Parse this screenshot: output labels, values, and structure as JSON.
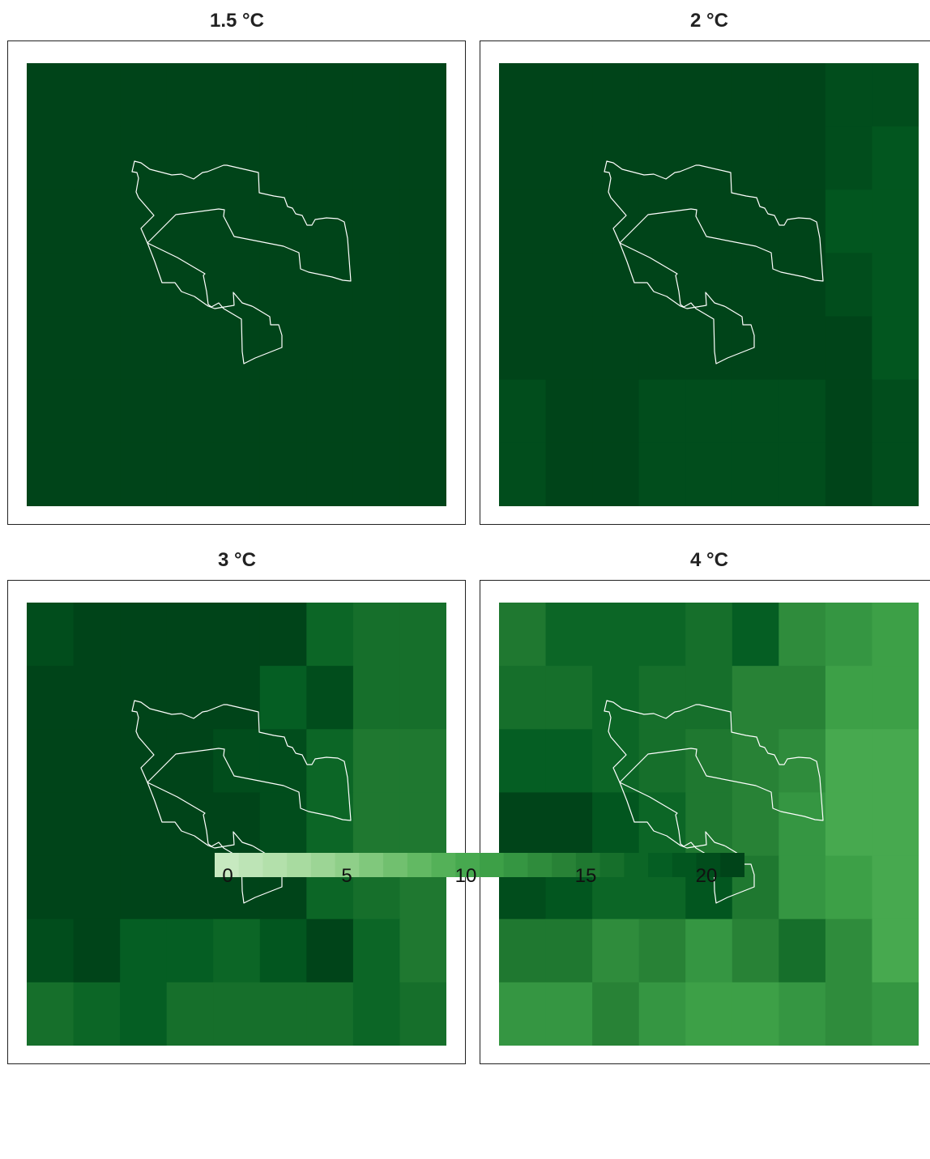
{
  "panels": [
    {
      "title": "1.5 °C",
      "values": [
        [
          21,
          21,
          21,
          21,
          21,
          21,
          21,
          21,
          21
        ],
        [
          21,
          21,
          21,
          21,
          21,
          21,
          21,
          21,
          21
        ],
        [
          21,
          21,
          21,
          21,
          21,
          21,
          21,
          21,
          21
        ],
        [
          21,
          21,
          21,
          21,
          21,
          21,
          21,
          21,
          21
        ],
        [
          21,
          21,
          21,
          21,
          21,
          21,
          21,
          21,
          21
        ],
        [
          21,
          21,
          21,
          21,
          21,
          21,
          21,
          21,
          21
        ],
        [
          21,
          21,
          21,
          21,
          21,
          21,
          21,
          21,
          21
        ]
      ]
    },
    {
      "title": "2 °C",
      "values": [
        [
          21,
          21,
          21,
          21,
          21,
          21,
          21,
          20,
          20
        ],
        [
          21,
          21,
          21,
          21,
          21,
          21,
          21,
          20,
          19
        ],
        [
          21,
          21,
          21,
          21,
          21,
          21,
          21,
          19,
          19
        ],
        [
          21,
          21,
          21,
          21,
          21,
          21,
          21,
          20,
          19
        ],
        [
          21,
          21,
          21,
          21,
          21,
          21,
          21,
          21,
          19
        ],
        [
          20,
          21,
          21,
          20,
          20,
          20,
          20,
          21,
          20
        ],
        [
          20,
          21,
          21,
          20,
          20,
          20,
          20,
          21,
          20
        ]
      ]
    },
    {
      "title": "3 °C",
      "values": [
        [
          20,
          22,
          22,
          22,
          22,
          22,
          17,
          16,
          16
        ],
        [
          21,
          22,
          22,
          21,
          21,
          18,
          20,
          16,
          16
        ],
        [
          22,
          22,
          22,
          21,
          20,
          20,
          17,
          15,
          15
        ],
        [
          22,
          22,
          22,
          22,
          22,
          20,
          17,
          15,
          15
        ],
        [
          22,
          22,
          22,
          22,
          22,
          21,
          17,
          16,
          15
        ],
        [
          20,
          21,
          18,
          18,
          17,
          19,
          21,
          17,
          15
        ],
        [
          16,
          17,
          18,
          16,
          16,
          16,
          16,
          17,
          16
        ]
      ]
    },
    {
      "title": "4 °C",
      "values": [
        [
          15,
          17,
          17,
          17,
          16,
          18,
          13,
          12,
          11
        ],
        [
          16,
          16,
          17,
          16,
          16,
          14,
          14,
          11,
          11
        ],
        [
          18,
          18,
          17,
          16,
          15,
          14,
          13,
          10,
          10
        ],
        [
          22,
          22,
          19,
          17,
          15,
          14,
          12,
          10,
          10
        ],
        [
          20,
          19,
          17,
          17,
          19,
          15,
          12,
          11,
          10
        ],
        [
          15,
          15,
          13,
          14,
          12,
          14,
          16,
          13,
          10
        ],
        [
          12,
          12,
          14,
          12,
          11,
          11,
          12,
          13,
          12
        ]
      ]
    }
  ],
  "colorbar": {
    "min": 0,
    "max": 22,
    "ticks": [
      "0",
      "5",
      "10",
      "15",
      "20"
    ],
    "colors": [
      "#c7e9c0",
      "#bde4b6",
      "#b3e0ab",
      "#a8dba0",
      "#9cd595",
      "#8fcf89",
      "#80c87c",
      "#71c06f",
      "#62b963",
      "#54b158",
      "#47a94f",
      "#3da047",
      "#359642",
      "#2f8c3c",
      "#288236",
      "#1f7830",
      "#166f2b",
      "#0c6626",
      "#055e23",
      "#02561f",
      "#014d1c",
      "#004419"
    ]
  },
  "colors": {
    "outline": "#ffffff",
    "frame": "#222222"
  }
}
